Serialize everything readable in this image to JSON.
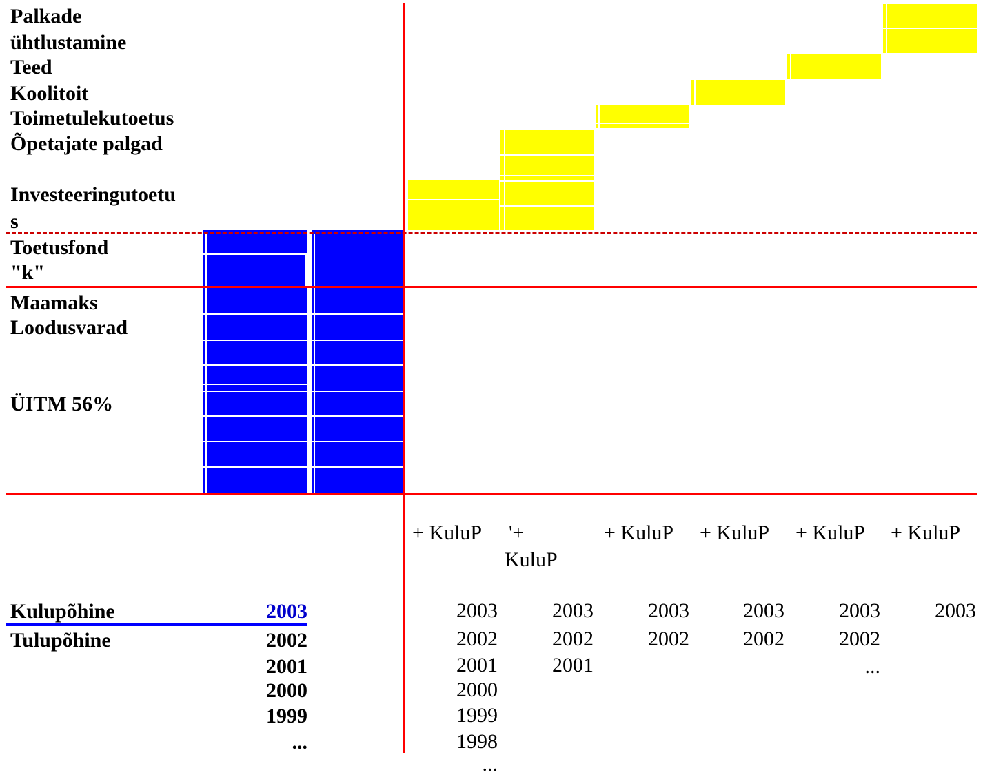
{
  "labels": {
    "palkade": "Palkade",
    "uhtlustamine": "ühtlustamine",
    "teed": "Teed",
    "koolitoit": "Koolitoit",
    "toimetulekutoetus": "Toimetulekutoetus",
    "opetajate_palgad": "Õpetajate palgad",
    "investeeringutoetu": "Investeeringutoetu",
    "investeeringutoetu_s": "s",
    "toetusfond": "Toetusfond",
    "toetusfond_k": "\"k\"",
    "maamaks": "Maamaks",
    "loodusvarad": "Loodusvarad",
    "uitm": "ÜITM 56%",
    "kulupohine": "Kulupõhine",
    "tulupohine": "Tulupõhine"
  },
  "left_years": {
    "y2003": "2003",
    "y2002": "2002",
    "y2001": "2001",
    "y2000": "2000",
    "y1999": "1999",
    "ellipsis": "..."
  },
  "columns": [
    {
      "header": "+ KuluP",
      "years": [
        "2003",
        "2002",
        "2001",
        "2000",
        "1999",
        "1998",
        "..."
      ]
    },
    {
      "header_line1": "'+",
      "header_line2": "KuluP",
      "years": [
        "2003",
        "2002",
        "2001"
      ]
    },
    {
      "header": "+ KuluP",
      "years": [
        "2003",
        "2002"
      ]
    },
    {
      "header": "+ KuluP",
      "years": [
        "2003",
        "2002"
      ]
    },
    {
      "header": "+ KuluP",
      "years": [
        "2003",
        "2002",
        "..."
      ]
    },
    {
      "header": "+ KuluP",
      "years": [
        "2003"
      ]
    }
  ],
  "colors": {
    "blue": "#0000ff",
    "yellow": "#ffff00",
    "red": "#ff0000",
    "highlight_year": "#0000cc"
  }
}
